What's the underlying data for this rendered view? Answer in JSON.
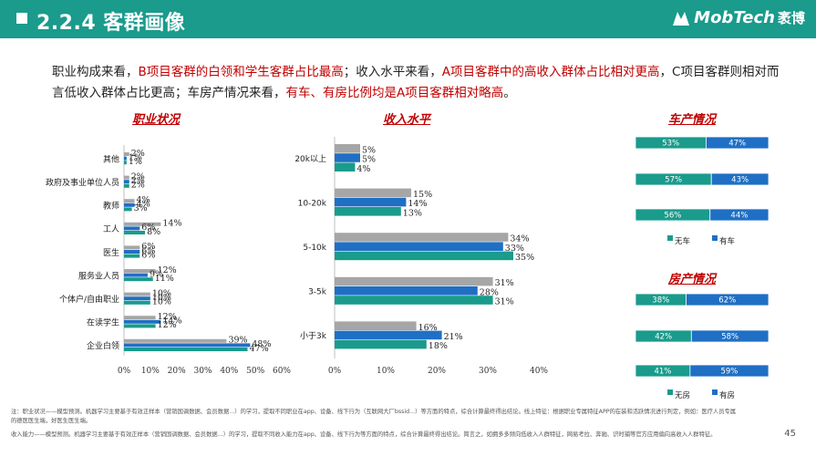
{
  "header": {
    "title": "2.2.4 客群画像",
    "logo_text": "MobTech",
    "logo_cn": "袤博"
  },
  "summary": {
    "p1": "职业构成来看，",
    "h1": "B项目客群的白领和学生客群占比最高",
    "p2": "；收入水平来看，",
    "h2": "A项目客群中的高收入群体占比相对更高",
    "p3": "，C项目客群则相对而言低收入群体占比更高；车房产情况来看，",
    "h3": "有车、有房比例均是A项目客群相对略高",
    "p4": "。"
  },
  "colors": {
    "gray": "#a6a6a6",
    "blue": "#1f6fc5",
    "teal": "#1a9b8c"
  },
  "chart_data": [
    {
      "type": "bar",
      "orientation": "horizontal",
      "title": "职业状况",
      "categories": [
        "其他",
        "政府及事业单位人员",
        "教师",
        "工人",
        "医生",
        "服务业人员",
        "个体户/自由职业",
        "在读学生",
        "企业白领"
      ],
      "series": [
        {
          "values": [
            2,
            2,
            4,
            14,
            6,
            12,
            10,
            12,
            39
          ]
        },
        {
          "values": [
            1,
            2,
            4,
            6,
            6,
            9,
            10,
            14,
            48
          ]
        },
        {
          "values": [
            1,
            2,
            3,
            8,
            6,
            11,
            10,
            12,
            47
          ]
        }
      ],
      "labels": [
        [
          "2%",
          "1%",
          "1%"
        ],
        [
          "2%",
          "2%",
          "2%"
        ],
        [
          "4%",
          "4%",
          "3%"
        ],
        [
          "14%",
          "6%",
          "8%"
        ],
        [
          "6%",
          "6%",
          "6%"
        ],
        [
          "12%",
          "9%",
          "11%"
        ],
        [
          "10%",
          "10%",
          "10%"
        ],
        [
          "12%",
          "14%",
          "12%"
        ],
        [
          "39%",
          "48%",
          "47%"
        ]
      ],
      "xlim": [
        0,
        60
      ],
      "xticks": [
        "0%",
        "10%",
        "20%",
        "30%",
        "40%",
        "50%",
        "60%"
      ]
    },
    {
      "type": "bar",
      "orientation": "horizontal",
      "title": "收入水平",
      "categories": [
        "20k以上",
        "10-20k",
        "5-10k",
        "3-5k",
        "小于3k"
      ],
      "series": [
        {
          "values": [
            5,
            15,
            34,
            31,
            16
          ]
        },
        {
          "values": [
            5,
            14,
            33,
            28,
            21
          ]
        },
        {
          "values": [
            4,
            13,
            35,
            31,
            18
          ]
        }
      ],
      "labels": [
        [
          "5%",
          "5%",
          "4%"
        ],
        [
          "15%",
          "14%",
          "13%"
        ],
        [
          "34%",
          "33%",
          "35%"
        ],
        [
          "31%",
          "28%",
          "31%"
        ],
        [
          "16%",
          "21%",
          "18%"
        ]
      ],
      "xlim": [
        0,
        40
      ],
      "xticks": [
        "0%",
        "10%",
        "20%",
        "30%",
        "40%"
      ]
    },
    {
      "type": "bar",
      "orientation": "horizontal",
      "stacked": true,
      "title": "车产情况",
      "series": [
        {
          "name": "无车",
          "values": [
            53,
            57,
            56
          ]
        },
        {
          "name": "有车",
          "values": [
            47,
            43,
            44
          ]
        }
      ],
      "labels": [
        [
          "53%",
          "47%"
        ],
        [
          "57%",
          "43%"
        ],
        [
          "56%",
          "44%"
        ]
      ]
    },
    {
      "type": "bar",
      "orientation": "horizontal",
      "stacked": true,
      "title": "房产情况",
      "series": [
        {
          "name": "无房",
          "values": [
            38,
            42,
            41
          ]
        },
        {
          "name": "有房",
          "values": [
            62,
            58,
            59
          ]
        }
      ],
      "labels": [
        [
          "38%",
          "62%"
        ],
        [
          "42%",
          "58%"
        ],
        [
          "41%",
          "59%"
        ]
      ]
    }
  ],
  "notes": {
    "line1": "注：职业状况——模型预测。机器学习主要基于有效正样本（营销国调数据、会员数据...）的学习，提取不同职业在app、设备、线下行为（互联网大厂bssid...）等方面的特点，综合计算最终得出结论。线上特征：根据职业专属特征APP的在装和活跃情况进行判定，例如：医疗人员专属",
    "line2": "的德医医生端，好医生医生端。",
    "line3": "收入能力——模型预测。机器学习主要基于有效正样本（营销国调数据、会员数据...）的学习，提取不同收入能力在app、设备、线下行为等方面的特点，综合计算最终得出结论。简言之，如拥多多频向低收入人群特征，网易考拉、奔驰、识时捕等官方应用偏向高收入人群特征。"
  },
  "page_number": "45"
}
